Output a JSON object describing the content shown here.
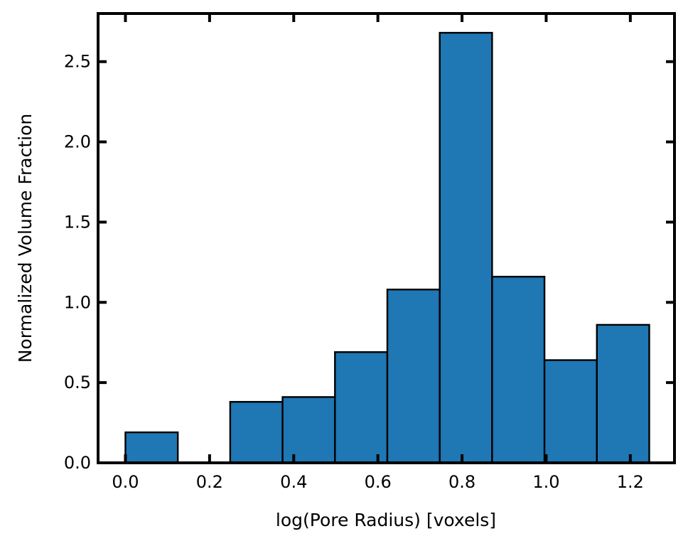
{
  "chart_data": {
    "type": "bar",
    "title": "",
    "xlabel": "log(Pore Radius) [voxels]",
    "ylabel": "Normalized Volume Fraction",
    "xlim": [
      -0.065,
      1.305
    ],
    "ylim": [
      0,
      2.8
    ],
    "bin_edges": [
      0.0,
      0.1245,
      0.249,
      0.3735,
      0.498,
      0.6225,
      0.747,
      0.8715,
      0.996,
      1.1205,
      1.245
    ],
    "values": [
      0.19,
      0.0,
      0.38,
      0.41,
      0.69,
      1.08,
      2.68,
      1.16,
      0.64,
      0.86
    ],
    "x_ticks": [
      0.0,
      0.2,
      0.4,
      0.6,
      0.8,
      1.0,
      1.2
    ],
    "x_tick_labels": [
      "0.0",
      "0.2",
      "0.4",
      "0.6",
      "0.8",
      "1.0",
      "1.2"
    ],
    "y_ticks": [
      0.0,
      0.5,
      1.0,
      1.5,
      2.0,
      2.5
    ],
    "y_tick_labels": [
      "0.0",
      "0.5",
      "1.0",
      "1.5",
      "2.0",
      "2.5"
    ],
    "grid": false,
    "bar_color": "#1f77b4",
    "edge_color": "#000000"
  }
}
